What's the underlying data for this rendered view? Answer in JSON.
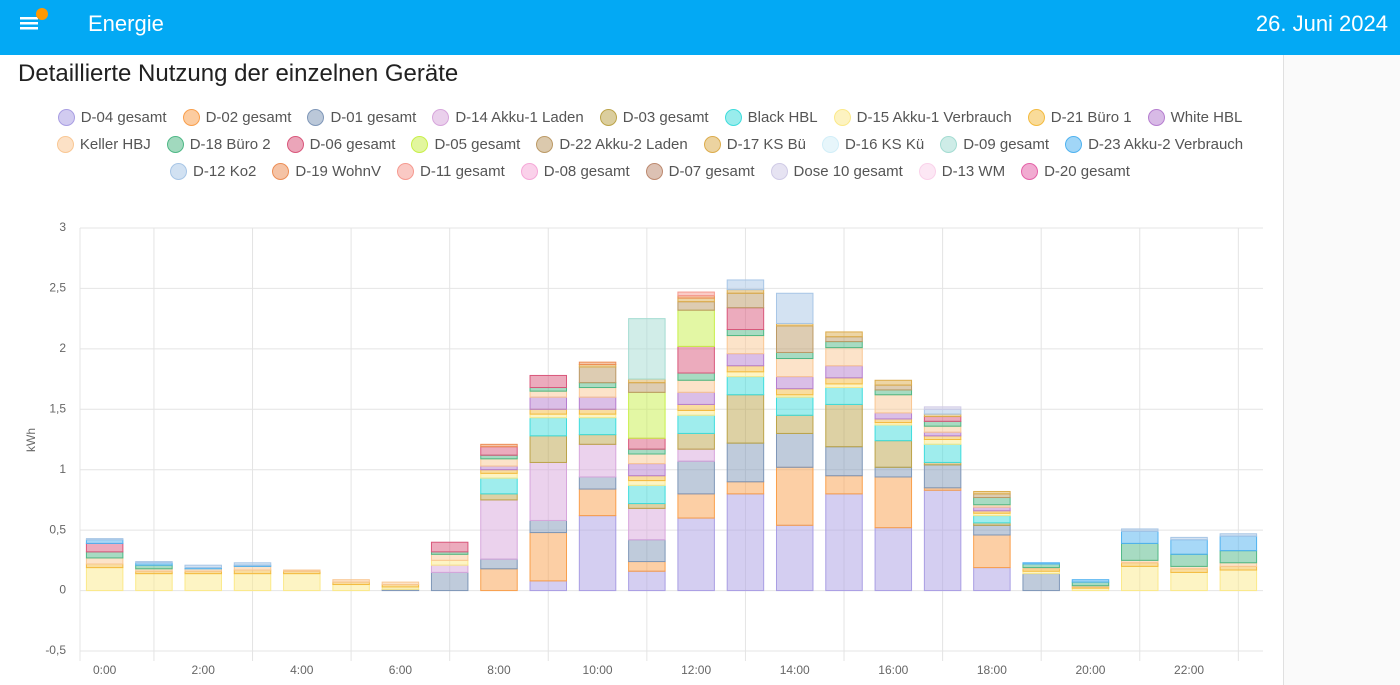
{
  "header": {
    "title": "Energie",
    "date": "26. Juni 2024"
  },
  "chart_data": {
    "type": "stacked_bar",
    "title": "Detaillierte Nutzung der einzelnen Geräte",
    "y_label": "kWh",
    "categories": [
      "0:00",
      null,
      "2:00",
      null,
      "4:00",
      null,
      "6:00",
      null,
      "8:00",
      null,
      "10:00",
      null,
      "12:00",
      null,
      "14:00",
      null,
      "16:00",
      null,
      "18:00",
      null,
      "20:00",
      null,
      "22:00",
      null
    ],
    "ylim": [
      -0.5,
      3
    ],
    "yticks": [
      {
        "value": -0.5,
        "label": "-0,5"
      },
      0,
      {
        "value": 0.5,
        "label": "0,5"
      },
      1,
      {
        "value": 1.5,
        "label": "1,5"
      },
      2,
      {
        "value": 2.5,
        "label": "2,5"
      },
      3
    ],
    "grid": true,
    "series": [
      {
        "name": "D-04 gesamt",
        "color": "#a99ee3",
        "values": [
          0,
          0,
          0,
          0,
          0,
          0,
          0,
          0,
          0,
          0.08,
          0.62,
          0.16,
          0.6,
          0.8,
          0.54,
          0.8,
          0.52,
          0.83,
          0.19,
          0,
          0,
          0,
          0,
          0
        ]
      },
      {
        "name": "D-02 gesamt",
        "color": "#f99f4c",
        "values": [
          0,
          0,
          0,
          0,
          0,
          0,
          0,
          0,
          0.18,
          0.4,
          0.22,
          0.08,
          0.2,
          0.1,
          0.48,
          0.15,
          0.42,
          0.02,
          0.27,
          0,
          0,
          0,
          0,
          0
        ]
      },
      {
        "name": "D-01 gesamt",
        "color": "#7f97b8",
        "values": [
          0,
          0,
          0,
          0,
          0,
          0,
          0.01,
          0.15,
          0.08,
          0.1,
          0.1,
          0.18,
          0.27,
          0.32,
          0.28,
          0.24,
          0.08,
          0.19,
          0.08,
          0.14,
          0,
          0,
          0,
          0
        ]
      },
      {
        "name": "D-14 Akku-1 Laden",
        "color": "#d7a6dc",
        "values": [
          0,
          0,
          0,
          0,
          0,
          0,
          0,
          0.06,
          0.49,
          0.48,
          0.27,
          0.26,
          0.1,
          0,
          0,
          0,
          0,
          0,
          0,
          0,
          0,
          0,
          0,
          0
        ]
      },
      {
        "name": "D-03 gesamt",
        "color": "#bca44a",
        "values": [
          0,
          0,
          0,
          0,
          0,
          0,
          0,
          0,
          0.05,
          0.22,
          0.08,
          0.04,
          0.13,
          0.4,
          0.15,
          0.35,
          0.22,
          0.02,
          0.02,
          0,
          0,
          0,
          0,
          0
        ]
      },
      {
        "name": "Black HBL",
        "color": "#3fdcdc",
        "values": [
          0,
          0,
          0,
          0,
          0,
          0,
          0,
          0,
          0.13,
          0.15,
          0.14,
          0.15,
          0.15,
          0.15,
          0.15,
          0.14,
          0.13,
          0.15,
          0.06,
          0,
          0,
          0,
          0,
          0
        ]
      },
      {
        "name": "D-15 Akku-1 Verbrauch",
        "color": "#fbe98a",
        "values": [
          0.19,
          0.14,
          0.14,
          0.14,
          0.14,
          0.05,
          0.02,
          0.04,
          0.04,
          0.03,
          0.03,
          0.04,
          0.04,
          0.04,
          0.02,
          0.03,
          0.02,
          0.04,
          0.02,
          0.02,
          0.02,
          0.2,
          0.15,
          0.17
        ]
      },
      {
        "name": "D-21 Büro 1",
        "color": "#f3bb40",
        "values": [
          0.03,
          0.02,
          0.02,
          0.03,
          0.02,
          0.02,
          0.02,
          0,
          0.03,
          0.04,
          0.04,
          0.04,
          0.05,
          0.05,
          0.05,
          0.05,
          0.03,
          0.03,
          0.02,
          0.02,
          0.01,
          0.03,
          0.03,
          0.03
        ]
      },
      {
        "name": "White HBL",
        "color": "#b67ed0",
        "values": [
          0,
          0,
          0,
          0,
          0,
          0,
          0,
          0,
          0.03,
          0.1,
          0.1,
          0.1,
          0.1,
          0.1,
          0.1,
          0.1,
          0.05,
          0.03,
          0.03,
          0,
          0,
          0,
          0,
          0
        ]
      },
      {
        "name": "Keller HBJ",
        "color": "#f9c794",
        "values": [
          0.05,
          0.02,
          0.02,
          0.03,
          0.01,
          0.02,
          0.02,
          0.05,
          0.06,
          0.05,
          0.08,
          0.08,
          0.1,
          0.15,
          0.15,
          0.15,
          0.15,
          0.05,
          0.02,
          0.01,
          0.01,
          0.02,
          0.02,
          0.03
        ]
      },
      {
        "name": "D-18 Büro 2",
        "color": "#4fb886",
        "values": [
          0.05,
          0.03,
          0,
          0,
          0,
          0,
          0,
          0.02,
          0.03,
          0.03,
          0.04,
          0.04,
          0.06,
          0.05,
          0.05,
          0.05,
          0.04,
          0.04,
          0.06,
          0.03,
          0.03,
          0.14,
          0.1,
          0.1
        ]
      },
      {
        "name": "D-06 gesamt",
        "color": "#d9577b",
        "values": [
          0.07,
          0,
          0,
          0,
          0,
          0,
          0,
          0.08,
          0.07,
          0.1,
          0,
          0.09,
          0.22,
          0.18,
          0,
          0,
          0,
          0.04,
          0,
          0,
          0,
          0,
          0,
          0
        ]
      },
      {
        "name": "D-05 gesamt",
        "color": "#c8ef4a",
        "values": [
          0,
          0,
          0,
          0,
          0,
          0,
          0,
          0,
          0,
          0,
          0,
          0.38,
          0.3,
          0,
          0,
          0,
          0,
          0,
          0,
          0,
          0,
          0,
          0,
          0
        ]
      },
      {
        "name": "D-22 Akku-2 Laden",
        "color": "#bc9a66",
        "values": [
          0,
          0,
          0,
          0,
          0,
          0,
          0,
          0,
          0,
          0,
          0.13,
          0.08,
          0.07,
          0.12,
          0.22,
          0.04,
          0.04,
          0,
          0.03,
          0,
          0,
          0,
          0,
          0
        ]
      },
      {
        "name": "D-17 KS Bü",
        "color": "#dcac4c",
        "values": [
          0,
          0,
          0,
          0,
          0,
          0,
          0,
          0,
          0,
          0,
          0.02,
          0.03,
          0.03,
          0.03,
          0.02,
          0.04,
          0.04,
          0.02,
          0.02,
          0,
          0,
          0,
          0,
          0
        ]
      },
      {
        "name": "D-16 KS Kü",
        "color": "#d2eef8",
        "values": [
          0,
          0,
          0,
          0,
          0,
          0,
          0,
          0,
          0,
          0,
          0,
          0,
          0,
          0,
          0,
          0,
          0,
          0,
          0,
          0,
          0,
          0,
          0,
          0
        ]
      },
      {
        "name": "D-09 gesamt",
        "color": "#a4dcd2",
        "values": [
          0,
          0,
          0,
          0,
          0,
          0,
          0,
          0,
          0,
          0,
          0,
          0.5,
          0,
          0,
          0,
          0,
          0,
          0,
          0,
          0,
          0,
          0,
          0,
          0
        ]
      },
      {
        "name": "D-23 Akku-2 Verbrauch",
        "color": "#4fb2f0",
        "values": [
          0.03,
          0.02,
          0.01,
          0.01,
          0,
          0,
          0,
          0,
          0,
          0,
          0,
          0,
          0,
          0,
          0,
          0,
          0,
          0,
          0,
          0.01,
          0.02,
          0.1,
          0.12,
          0.12
        ]
      },
      {
        "name": "D-12 Ko2",
        "color": "#a8c6e6",
        "values": [
          0.01,
          0.01,
          0.02,
          0.02,
          0,
          0,
          0,
          0,
          0,
          0,
          0,
          0,
          0,
          0.08,
          0.25,
          0,
          0,
          0.04,
          0,
          0,
          0,
          0.02,
          0.02,
          0.02
        ]
      },
      {
        "name": "D-19 WohnV",
        "color": "#ec8e56",
        "values": [
          0,
          0,
          0,
          0,
          0,
          0,
          0,
          0,
          0.02,
          0,
          0.02,
          0,
          0.02,
          0,
          0,
          0,
          0,
          0,
          0,
          0,
          0,
          0,
          0,
          0
        ]
      },
      {
        "name": "D-11 gesamt",
        "color": "#f59a90",
        "values": [
          0,
          0,
          0,
          0,
          0,
          0,
          0,
          0,
          0,
          0,
          0,
          0,
          0.03,
          0,
          0,
          0,
          0,
          0,
          0,
          0,
          0,
          0,
          0,
          0
        ]
      },
      {
        "name": "D-08 gesamt",
        "color": "#f5a8d8",
        "values": [
          0,
          0,
          0,
          0,
          0,
          0,
          0,
          0,
          0,
          0,
          0,
          0,
          0,
          0,
          0,
          0,
          0,
          0,
          0,
          0,
          0,
          0,
          0,
          0
        ]
      },
      {
        "name": "D-07 gesamt",
        "color": "#bd8a70",
        "values": [
          0,
          0,
          0,
          0,
          0,
          0,
          0,
          0,
          0,
          0,
          0,
          0,
          0,
          0,
          0,
          0,
          0,
          0,
          0,
          0,
          0,
          0,
          0,
          0
        ]
      },
      {
        "name": "Dose 10 gesamt",
        "color": "#d0cbe6",
        "values": [
          0,
          0,
          0,
          0,
          0,
          0,
          0,
          0,
          0,
          0,
          0,
          0,
          0,
          0,
          0,
          0,
          0,
          0.02,
          0,
          0,
          0,
          0,
          0,
          0
        ]
      },
      {
        "name": "D-13 WM",
        "color": "#fad2ea",
        "values": [
          0,
          0,
          0,
          0,
          0,
          0,
          0,
          0,
          0,
          0,
          0,
          0,
          0,
          0,
          0,
          0,
          0,
          0,
          0,
          0,
          0,
          0,
          0,
          0
        ]
      },
      {
        "name": "D-20 gesamt",
        "color": "#e462a8",
        "values": [
          0,
          0,
          0,
          0,
          0,
          0,
          0,
          0,
          0,
          0,
          0,
          0,
          0,
          0,
          0,
          0,
          0,
          0,
          0,
          0,
          0,
          0,
          0,
          0
        ]
      }
    ]
  }
}
